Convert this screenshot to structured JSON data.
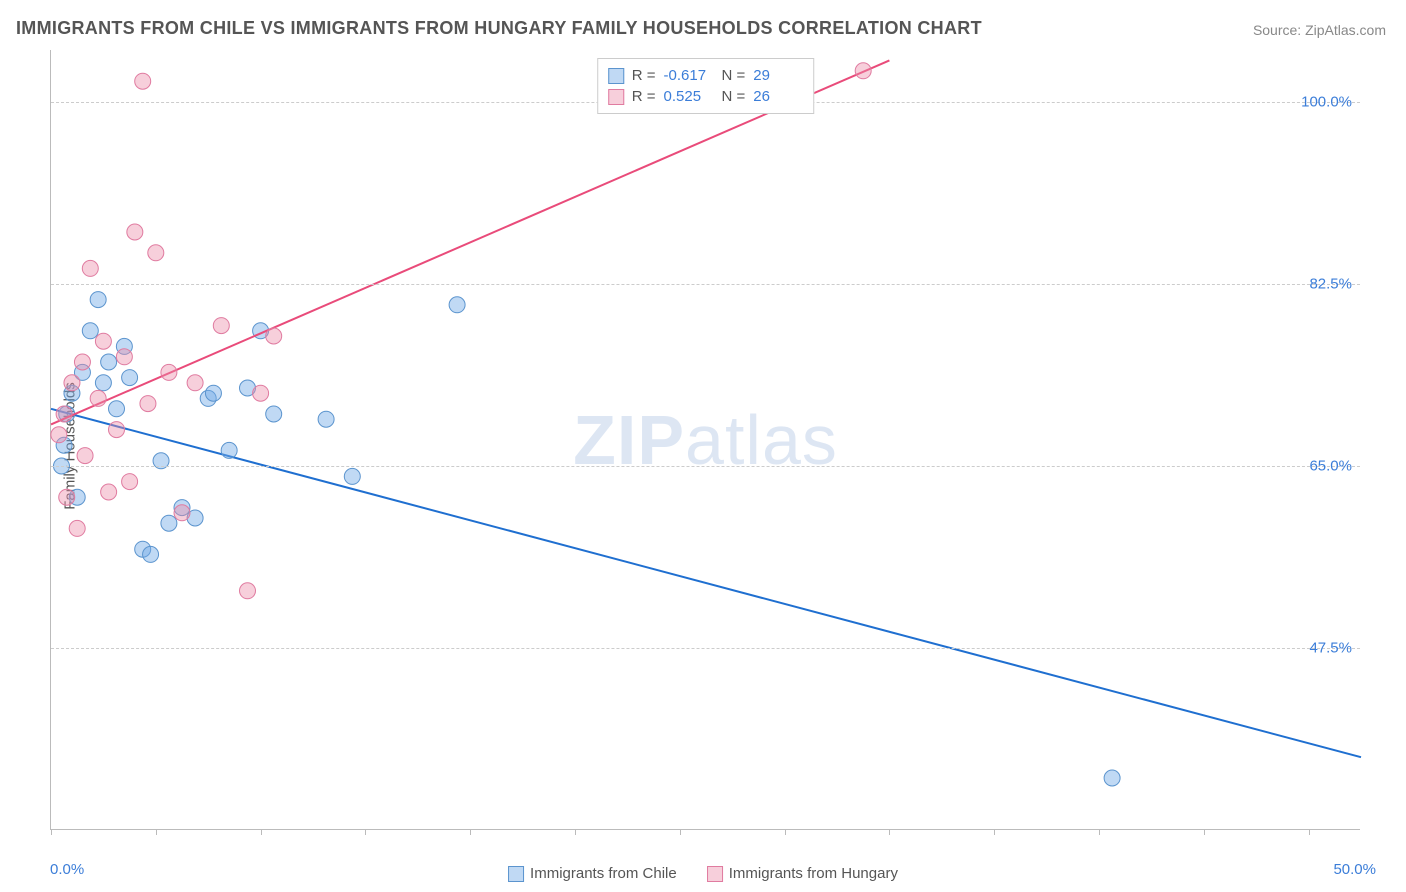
{
  "title": "IMMIGRANTS FROM CHILE VS IMMIGRANTS FROM HUNGARY FAMILY HOUSEHOLDS CORRELATION CHART",
  "source": "Source: ZipAtlas.com",
  "watermark_zip": "ZIP",
  "watermark_atlas": "atlas",
  "chart": {
    "type": "scatter",
    "ylabel": "Family Households",
    "background_color": "#ffffff",
    "grid_color": "#cccccc",
    "axis_color": "#bbbbbb",
    "tick_label_color": "#3b7dd8",
    "xlim": [
      0,
      50
    ],
    "ylim": [
      30,
      105
    ],
    "xtick_positions": [
      0,
      4,
      8,
      12,
      16,
      20,
      24,
      28,
      32,
      36,
      40,
      44,
      48
    ],
    "xaxis_label_min": "0.0%",
    "xaxis_label_max": "50.0%",
    "yticks": [
      {
        "value": 100.0,
        "label": "100.0%"
      },
      {
        "value": 82.5,
        "label": "82.5%"
      },
      {
        "value": 65.0,
        "label": "65.0%"
      },
      {
        "value": 47.5,
        "label": "47.5%"
      }
    ],
    "marker_radius": 8,
    "line_width": 2,
    "series": [
      {
        "name": "Immigrants from Chile",
        "fill_color": "rgba(115,170,230,0.45)",
        "stroke_color": "#5b94ce",
        "line_color": "#1f6fd0",
        "R": "-0.617",
        "N": "29",
        "trend": {
          "x1": 0,
          "y1": 70.5,
          "x2": 50,
          "y2": 37.0
        },
        "points": [
          {
            "x": 0.4,
            "y": 65.0
          },
          {
            "x": 0.5,
            "y": 67.0
          },
          {
            "x": 0.6,
            "y": 70.0
          },
          {
            "x": 0.8,
            "y": 72.0
          },
          {
            "x": 1.0,
            "y": 62.0
          },
          {
            "x": 1.2,
            "y": 74.0
          },
          {
            "x": 1.5,
            "y": 78.0
          },
          {
            "x": 1.8,
            "y": 81.0
          },
          {
            "x": 2.0,
            "y": 73.0
          },
          {
            "x": 2.2,
            "y": 75.0
          },
          {
            "x": 2.5,
            "y": 70.5
          },
          {
            "x": 2.8,
            "y": 76.5
          },
          {
            "x": 3.0,
            "y": 73.5
          },
          {
            "x": 3.5,
            "y": 57.0
          },
          {
            "x": 3.8,
            "y": 56.5
          },
          {
            "x": 4.2,
            "y": 65.5
          },
          {
            "x": 4.5,
            "y": 59.5
          },
          {
            "x": 5.0,
            "y": 61.0
          },
          {
            "x": 5.5,
            "y": 60.0
          },
          {
            "x": 6.0,
            "y": 71.5
          },
          {
            "x": 6.2,
            "y": 72.0
          },
          {
            "x": 6.8,
            "y": 66.5
          },
          {
            "x": 7.5,
            "y": 72.5
          },
          {
            "x": 8.0,
            "y": 78.0
          },
          {
            "x": 8.5,
            "y": 70.0
          },
          {
            "x": 10.5,
            "y": 69.5
          },
          {
            "x": 11.5,
            "y": 64.0
          },
          {
            "x": 15.5,
            "y": 80.5
          },
          {
            "x": 40.5,
            "y": 35.0
          }
        ]
      },
      {
        "name": "Immigrants from Hungary",
        "fill_color": "rgba(235,140,170,0.42)",
        "stroke_color": "#e07ba0",
        "line_color": "#e94b7a",
        "R": "0.525",
        "N": "26",
        "trend": {
          "x1": 0,
          "y1": 69.0,
          "x2": 32,
          "y2": 104.0
        },
        "points": [
          {
            "x": 0.3,
            "y": 68.0
          },
          {
            "x": 0.5,
            "y": 70.0
          },
          {
            "x": 0.6,
            "y": 62.0
          },
          {
            "x": 0.8,
            "y": 73.0
          },
          {
            "x": 1.0,
            "y": 59.0
          },
          {
            "x": 1.2,
            "y": 75.0
          },
          {
            "x": 1.5,
            "y": 84.0
          },
          {
            "x": 1.8,
            "y": 71.5
          },
          {
            "x": 2.0,
            "y": 77.0
          },
          {
            "x": 2.2,
            "y": 62.5
          },
          {
            "x": 2.5,
            "y": 68.5
          },
          {
            "x": 2.8,
            "y": 75.5
          },
          {
            "x": 3.0,
            "y": 63.5
          },
          {
            "x": 3.2,
            "y": 87.5
          },
          {
            "x": 3.5,
            "y": 102.0
          },
          {
            "x": 3.7,
            "y": 71.0
          },
          {
            "x": 4.0,
            "y": 85.5
          },
          {
            "x": 4.5,
            "y": 74.0
          },
          {
            "x": 5.0,
            "y": 60.5
          },
          {
            "x": 5.5,
            "y": 73.0
          },
          {
            "x": 6.5,
            "y": 78.5
          },
          {
            "x": 7.5,
            "y": 53.0
          },
          {
            "x": 8.0,
            "y": 72.0
          },
          {
            "x": 8.5,
            "y": 77.5
          },
          {
            "x": 31.0,
            "y": 103.0
          },
          {
            "x": 1.3,
            "y": 66.0
          }
        ]
      }
    ]
  },
  "legend": {
    "r_label": "R =",
    "n_label": "N ="
  }
}
